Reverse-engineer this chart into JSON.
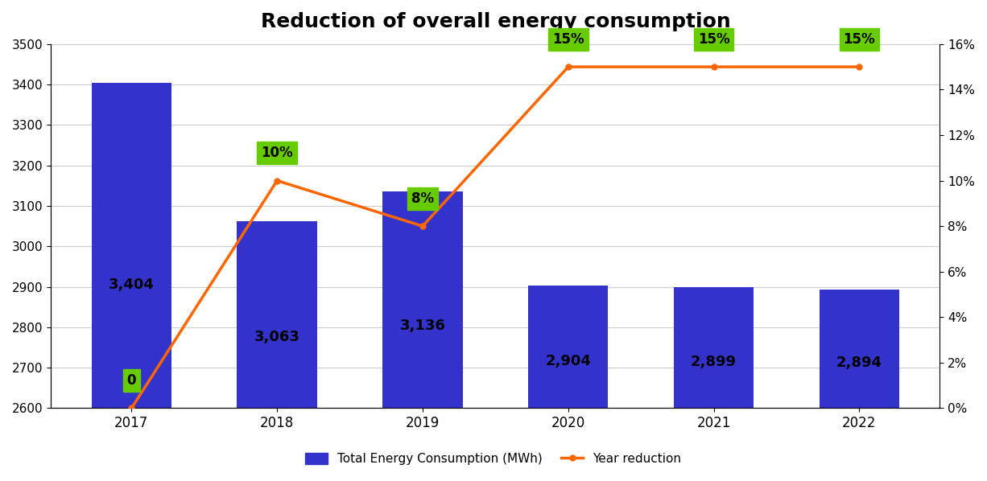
{
  "title": "Reduction of overall energy consumption",
  "categories": [
    "2017",
    "2018",
    "2019",
    "2020",
    "2021",
    "2022"
  ],
  "bar_values": [
    3404,
    3063,
    3136,
    2904,
    2899,
    2894
  ],
  "bar_labels": [
    "3,404",
    "3,063",
    "3,136",
    "2,904",
    "2,899",
    "2,894"
  ],
  "bar_color": "#3333CC",
  "line_values": [
    0,
    10,
    8,
    15,
    15,
    15
  ],
  "line_label_texts": [
    "0",
    "10%",
    "8%",
    "15%",
    "15%",
    "15%"
  ],
  "line_color": "#FF6600",
  "ylim_left": [
    2600,
    3500
  ],
  "ylim_right": [
    0,
    16
  ],
  "yticks_left": [
    2600,
    2700,
    2800,
    2900,
    3000,
    3100,
    3200,
    3300,
    3400,
    3500
  ],
  "yticks_right": [
    0,
    2,
    4,
    6,
    8,
    10,
    12,
    14,
    16
  ],
  "ylabel_right_labels": [
    "0%",
    "2%",
    "4%",
    "6%",
    "8%",
    "10%",
    "12%",
    "14%",
    "16%"
  ],
  "legend_bar_label": "Total Energy Consumption (MWh)",
  "legend_line_label": "Year reduction",
  "background_color": "#FFFFFF",
  "grid_color": "#CCCCCC",
  "title_fontsize": 18,
  "bar_label_fontsize": 13,
  "annotation_fontsize": 12,
  "annotation_bg_color": "#66CC00",
  "annotation_text_color": "#000000",
  "figsize": [
    12.26,
    5.98
  ]
}
